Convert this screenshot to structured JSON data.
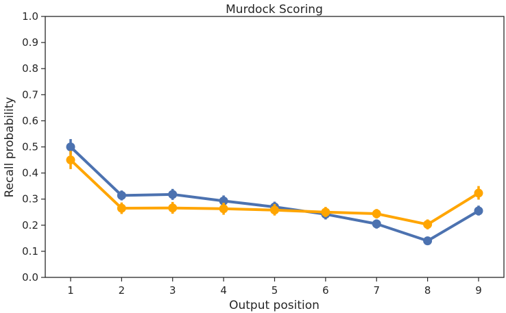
{
  "chart_data": {
    "type": "line",
    "title": "Murdock Scoring",
    "xlabel": "Output position",
    "ylabel": "Recall probability",
    "x": [
      1,
      2,
      3,
      4,
      5,
      6,
      7,
      8,
      9
    ],
    "xticks": [
      "1",
      "2",
      "3",
      "4",
      "5",
      "6",
      "7",
      "8",
      "9"
    ],
    "ylim": [
      0,
      1.0
    ],
    "yticks": [
      "0.0",
      "0.1",
      "0.2",
      "0.3",
      "0.4",
      "0.5",
      "0.6",
      "0.7",
      "0.8",
      "0.9",
      "1.0"
    ],
    "grid": false,
    "series": [
      {
        "color": "#4C72B0",
        "values": [
          0.5,
          0.314,
          0.318,
          0.293,
          0.27,
          0.242,
          0.205,
          0.14,
          0.255
        ],
        "error_low": [
          0.47,
          0.295,
          0.297,
          0.275,
          0.252,
          0.222,
          0.187,
          0.124,
          0.237
        ],
        "error_high": [
          0.53,
          0.333,
          0.339,
          0.314,
          0.29,
          0.26,
          0.222,
          0.155,
          0.275
        ]
      },
      {
        "color": "#FFA500",
        "values": [
          0.45,
          0.265,
          0.266,
          0.263,
          0.258,
          0.25,
          0.244,
          0.203,
          0.323
        ],
        "error_low": [
          0.415,
          0.243,
          0.244,
          0.24,
          0.237,
          0.231,
          0.226,
          0.184,
          0.298
        ],
        "error_high": [
          0.485,
          0.287,
          0.289,
          0.286,
          0.281,
          0.27,
          0.262,
          0.222,
          0.35
        ]
      }
    ]
  }
}
